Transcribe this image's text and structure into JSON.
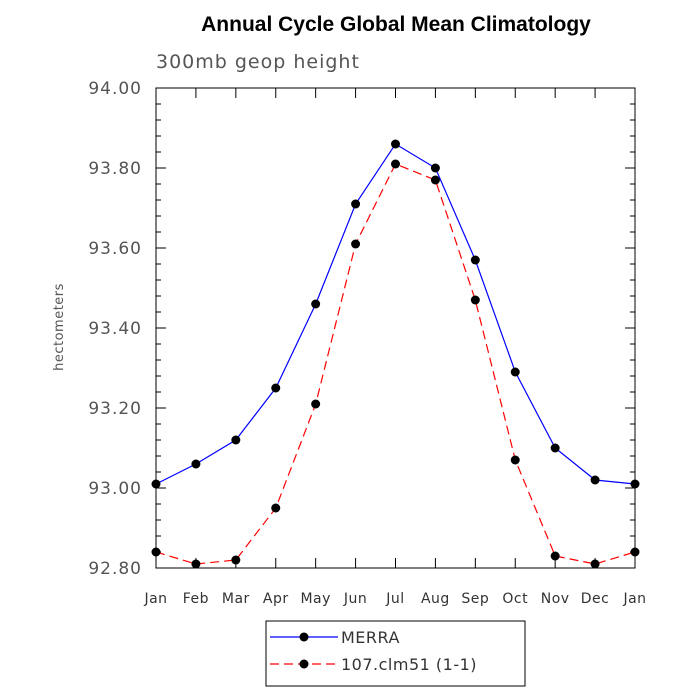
{
  "chart_data": {
    "type": "line",
    "title": "Annual Cycle Global Mean Climatology",
    "subtitle": "300mb geop height",
    "xlabel": "",
    "ylabel": "hectometers",
    "categories": [
      "Jan",
      "Feb",
      "Mar",
      "Apr",
      "May",
      "Jun",
      "Jul",
      "Aug",
      "Sep",
      "Oct",
      "Nov",
      "Dec",
      "Jan"
    ],
    "ylim": [
      92.8,
      94.0
    ],
    "yticks": [
      "92.80",
      "93.00",
      "93.20",
      "93.40",
      "93.60",
      "93.80",
      "94.00"
    ],
    "grid": false,
    "legend_position": "bottom",
    "series": [
      {
        "name": "MERRA",
        "color": "#0000ff",
        "style": "solid",
        "values": [
          93.01,
          93.06,
          93.12,
          93.25,
          93.46,
          93.71,
          93.86,
          93.8,
          93.57,
          93.29,
          93.1,
          93.02,
          93.01
        ]
      },
      {
        "name": "107.clm51 (1-1)",
        "color": "#ff0000",
        "style": "dashed",
        "values": [
          92.84,
          92.81,
          92.82,
          92.95,
          93.21,
          93.61,
          93.81,
          93.77,
          93.47,
          93.07,
          92.83,
          92.81,
          92.84
        ]
      }
    ]
  }
}
